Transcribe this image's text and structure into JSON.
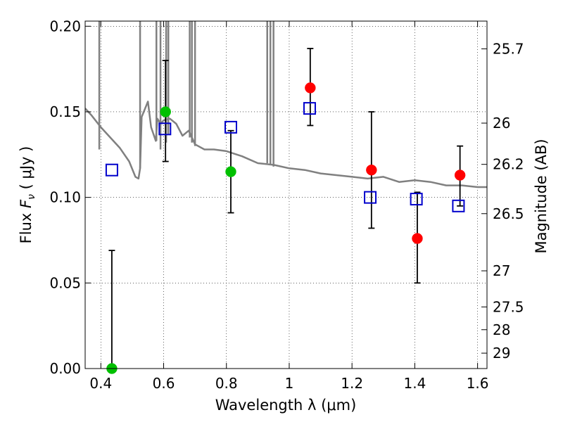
{
  "chart_data": {
    "type": "scatter",
    "title": "",
    "xlabel": "Wavelength  λ (μm)",
    "ylabel_prefix": "Flux  ",
    "ylabel_var": "F",
    "ylabel_sub": "ν",
    "ylabel_suffix": "  ( μJy )",
    "y2label": "Magnitude (AB)",
    "xlim": [
      0.35,
      1.63
    ],
    "ylim": [
      0.0,
      0.203
    ],
    "grid": true,
    "x_ticks": [
      0.4,
      0.6,
      0.8,
      1.0,
      1.2,
      1.4,
      1.6
    ],
    "x_tick_labels": [
      "0.4",
      "0.6",
      "0.8",
      "1",
      "1.2",
      "1.4",
      "1.6"
    ],
    "y_ticks": [
      0.0,
      0.05,
      0.1,
      0.15,
      0.2
    ],
    "y_tick_labels": [
      "0.00",
      "0.05",
      "0.10",
      "0.15",
      "0.20"
    ],
    "y2_ticks": [
      {
        "label": "25.7",
        "flux": 0.1868
      },
      {
        "label": "26",
        "flux": 0.1434
      },
      {
        "label": "26.2",
        "flux": 0.1193
      },
      {
        "label": "26.5",
        "flux": 0.0905
      },
      {
        "label": "27",
        "flux": 0.0571
      },
      {
        "label": "27.5",
        "flux": 0.036
      },
      {
        "label": "28",
        "flux": 0.0227
      },
      {
        "label": "29",
        "flux": 0.009
      }
    ],
    "series": [
      {
        "style": "model_spectrum",
        "color": "#808080",
        "x": [
          0.35,
          0.37,
          0.4,
          0.43,
          0.46,
          0.49,
          0.51,
          0.52,
          0.525,
          0.53,
          0.55,
          0.56,
          0.575,
          0.58,
          0.59,
          0.6,
          0.62,
          0.64,
          0.66,
          0.68,
          0.7,
          0.73,
          0.76,
          0.8,
          0.85,
          0.9,
          0.95,
          1.0,
          1.05,
          1.1,
          1.15,
          1.2,
          1.25,
          1.3,
          1.35,
          1.4,
          1.45,
          1.5,
          1.55,
          1.6,
          1.63
        ],
        "y": [
          0.152,
          0.148,
          0.141,
          0.135,
          0.129,
          0.121,
          0.112,
          0.111,
          0.117,
          0.147,
          0.156,
          0.141,
          0.133,
          0.146,
          0.143,
          0.145,
          0.146,
          0.143,
          0.136,
          0.139,
          0.131,
          0.128,
          0.128,
          0.127,
          0.124,
          0.12,
          0.119,
          0.117,
          0.116,
          0.114,
          0.113,
          0.112,
          0.111,
          0.112,
          0.109,
          0.11,
          0.109,
          0.107,
          0.107,
          0.106,
          0.106
        ],
        "spikes": [
          {
            "x": 0.395,
            "y": 0.128
          },
          {
            "x": 0.525,
            "y": 0.117
          },
          {
            "x": 0.577,
            "y": 0.133
          },
          {
            "x": 0.59,
            "y": 0.128
          },
          {
            "x": 0.608,
            "y": 0.132
          },
          {
            "x": 0.615,
            "y": 0.137
          },
          {
            "x": 0.683,
            "y": 0.135
          },
          {
            "x": 0.69,
            "y": 0.132
          },
          {
            "x": 0.7,
            "y": 0.13
          },
          {
            "x": 0.93,
            "y": 0.12
          },
          {
            "x": 0.94,
            "y": 0.119
          },
          {
            "x": 0.95,
            "y": 0.118
          }
        ]
      },
      {
        "style": "open_square",
        "color": "#0000cc",
        "x": [
          0.435,
          0.604,
          0.814,
          1.065,
          1.258,
          1.405,
          1.539
        ],
        "y": [
          0.116,
          0.14,
          0.141,
          0.152,
          0.1,
          0.099,
          0.095
        ]
      },
      {
        "style": "filled_circle",
        "color": "#00c000",
        "x": [
          0.435,
          0.606,
          0.814
        ],
        "y": [
          0.0,
          0.15,
          0.115
        ],
        "err_lo": [
          0.0,
          0.121,
          0.091
        ],
        "err_hi": [
          0.069,
          0.18,
          0.139
        ]
      },
      {
        "style": "filled_circle",
        "color": "#ff0000",
        "x": [
          1.067,
          1.262,
          1.408,
          1.544
        ],
        "y": [
          0.164,
          0.116,
          0.076,
          0.113
        ],
        "err_lo": [
          0.142,
          0.082,
          0.05,
          0.095
        ],
        "err_hi": [
          0.187,
          0.15,
          0.103,
          0.13
        ]
      }
    ]
  }
}
